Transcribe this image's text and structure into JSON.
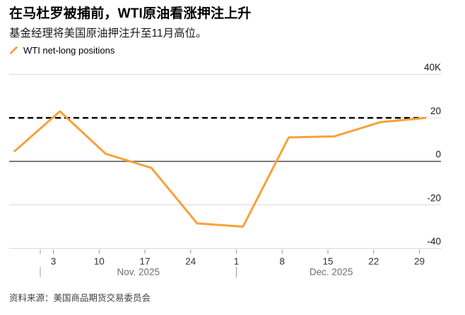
{
  "header": {
    "title": "在马杜罗被捕前，WTI原油看涨押注上升",
    "subtitle": "基金经理将美国原油押注升至11月高位。"
  },
  "legend": {
    "series_label": "WTI net-long positions"
  },
  "footer": {
    "source": "资料来源：美国商品期货交易委员会"
  },
  "colors": {
    "series": "#F7A139",
    "grid": "#D8D8D8",
    "zero_line": "#7B7B7B",
    "reference_dashed": "#000000",
    "tick": "#999999",
    "y_label": "#1A1A1A",
    "x_label": "#333333",
    "month_label": "#6E6E6E"
  },
  "chart_data": {
    "type": "line",
    "title": "在马杜罗被捕前，WTI原油看涨押注上升",
    "subtitle": "基金经理将美国原油押注升至11月高位。",
    "unit": "thousand contracts",
    "grid": true,
    "legend_position": "top-left",
    "ylim": [
      -40,
      40
    ],
    "series": [
      {
        "name": "WTI net-long positions",
        "dates": [
          "Oct 28 2025",
          "Nov 4 2025",
          "Nov 11 2025",
          "Nov 18 2025",
          "Nov 25 2025",
          "Dec 2 2025",
          "Dec 9 2025",
          "Dec 16 2025",
          "Dec 23 2025",
          "Dec 30 2025"
        ],
        "x_days": [
          0,
          7,
          14,
          21,
          28,
          35,
          42,
          49,
          56,
          63
        ],
        "values": [
          4.5,
          23,
          3.5,
          -3,
          -28.5,
          -30,
          11,
          11.5,
          18,
          20
        ]
      }
    ],
    "reference_line": {
      "style": "dashed",
      "value": 20
    },
    "y_axis": {
      "ticks": [
        {
          "value": 40,
          "label": "40K"
        },
        {
          "value": 20,
          "label": "20"
        },
        {
          "value": 0,
          "label": "0"
        },
        {
          "value": -20,
          "label": "-20"
        },
        {
          "value": -40,
          "label": "-40"
        }
      ]
    },
    "x_axis": {
      "ticks": [
        {
          "label": "3",
          "day": 6
        },
        {
          "label": "10",
          "day": 13
        },
        {
          "label": "17",
          "day": 20
        },
        {
          "label": "24",
          "day": 27
        },
        {
          "label": "1",
          "day": 34
        },
        {
          "label": "8",
          "day": 41
        },
        {
          "label": "15",
          "day": 48
        },
        {
          "label": "22",
          "day": 55
        },
        {
          "label": "29",
          "day": 62
        }
      ],
      "months": [
        {
          "label": "Nov. 2025",
          "boundary_day": 4,
          "center_day": 19
        },
        {
          "label": "Dec. 2025",
          "boundary_day": 34,
          "center_day": 48.5
        }
      ]
    }
  }
}
